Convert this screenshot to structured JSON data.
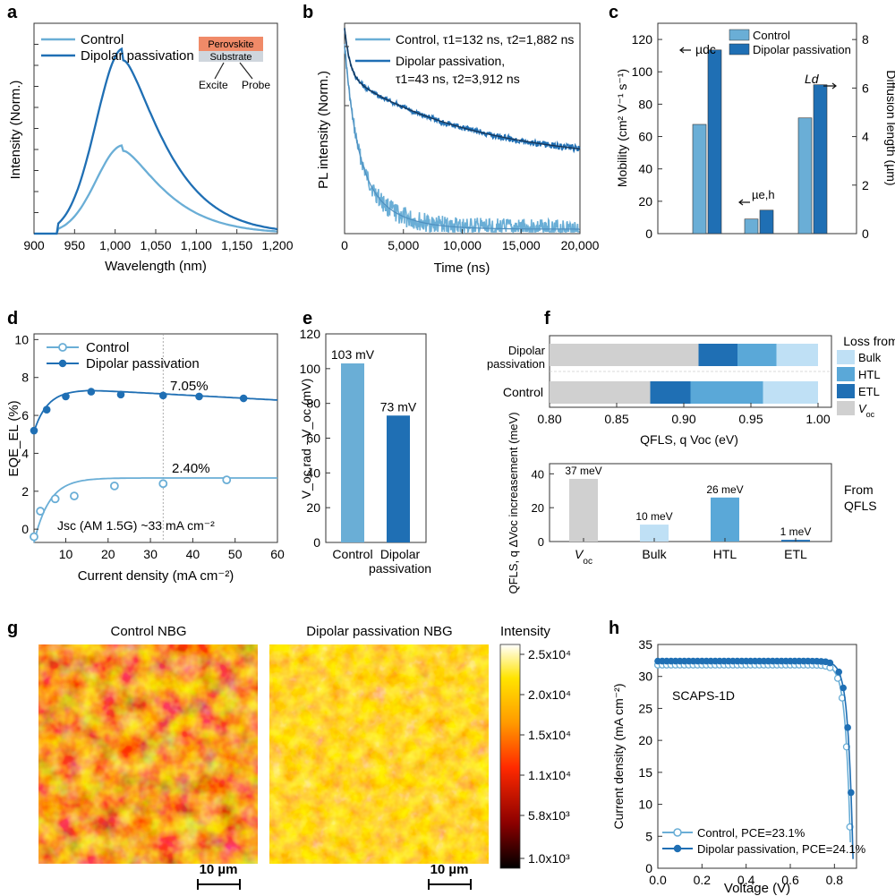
{
  "colors": {
    "control": "#6aaed6",
    "dipolar": "#1f6fb4",
    "light": "#bfe0f5",
    "mid": "#5aa8d8",
    "dark": "#1f6fb4",
    "voc": "#d0d0d0"
  },
  "panel_labels": [
    "a",
    "b",
    "c",
    "d",
    "e",
    "f",
    "g",
    "h"
  ],
  "chart_data": [
    {
      "id": "a",
      "type": "line",
      "xlabel": "Wavelength (nm)",
      "ylabel": "Intensity (Norm.)",
      "xlim": [
        900,
        1200
      ],
      "xticks": [
        900,
        950,
        1000,
        1050,
        1100,
        1150,
        1200
      ],
      "xtick_labels": [
        "900",
        "950",
        "1,000",
        "1,050",
        "1,100",
        "1,150",
        "1,200"
      ],
      "legend": [
        "Control",
        "Dipolar passivation"
      ],
      "series": [
        {
          "name": "Control",
          "peak_x": 1010,
          "peak_y": 0.42
        },
        {
          "name": "Dipolar passivation",
          "peak_x": 1010,
          "peak_y": 0.88
        }
      ],
      "inset": {
        "top_layer": "Perovskite",
        "bottom_layer": "Substrate",
        "left_label": "Excite",
        "right_label": "Probe"
      }
    },
    {
      "id": "b",
      "type": "line",
      "xlabel": "Time (ns)",
      "ylabel": "PL intensity (Norm.)",
      "xlim": [
        0,
        20000
      ],
      "xticks": [
        0,
        5000,
        10000,
        15000,
        20000
      ],
      "xtick_labels": [
        "0",
        "5,000",
        "10,000",
        "15,000",
        "20,000"
      ],
      "legend": [
        "Control, τ1=132 ns, τ2=1,882 ns",
        "Dipolar passivation,",
        "τ1=43 ns, τ2=3,912 ns"
      ],
      "series": [
        {
          "name": "Control",
          "tau1_ns": 132,
          "tau2_ns": 1882
        },
        {
          "name": "Dipolar passivation",
          "tau1_ns": 43,
          "tau2_ns": 3912
        }
      ]
    },
    {
      "id": "c",
      "type": "bar",
      "ylabel": "Mobility (cm² V⁻¹ s⁻¹)",
      "y2label": "Diffusion length (µm)",
      "ylim": [
        0,
        130
      ],
      "yticks": [
        0,
        20,
        40,
        60,
        80,
        100,
        120
      ],
      "y2lim": [
        0,
        8.67
      ],
      "y2ticks": [
        0,
        2,
        4,
        6,
        8
      ],
      "categories": [
        "µdc",
        "µe,h",
        "Ld"
      ],
      "legend": [
        "Control",
        "Dipolar passivation"
      ],
      "series": [
        {
          "name": "Control",
          "values": [
            67.5,
            9,
            71.5
          ]
        },
        {
          "name": "Dipolar passivation",
          "values": [
            113.5,
            14.5,
            92
          ]
        }
      ]
    },
    {
      "id": "d",
      "type": "line",
      "xlabel": "Current density (mA cm⁻²)",
      "ylabel": "EQE_EL (%)",
      "xlim": [
        2.5,
        60
      ],
      "ylim": [
        -0.7,
        10.3
      ],
      "xticks": [
        10,
        20,
        30,
        40,
        50,
        60
      ],
      "yticks": [
        0,
        2,
        4,
        6,
        8,
        10
      ],
      "legend": [
        "Control",
        "Dipolar passivation"
      ],
      "series": [
        {
          "name": "Control",
          "x": [
            2.5,
            4,
            7.5,
            12,
            21.5,
            33,
            48
          ],
          "y": [
            -0.4,
            0.95,
            1.6,
            1.75,
            2.28,
            2.4,
            2.6
          ]
        },
        {
          "name": "Dipolar passivation",
          "x": [
            2.5,
            5.5,
            10,
            16,
            23,
            33,
            41.5,
            52
          ],
          "y": [
            5.2,
            6.3,
            7.0,
            7.25,
            7.1,
            7.05,
            7.0,
            6.9
          ]
        }
      ],
      "annotations": [
        "7.05%",
        "2.40%",
        "Jsc (AM 1.5G) ~33 mA cm⁻²"
      ],
      "vline_x": 33
    },
    {
      "id": "e",
      "type": "bar",
      "ylabel": "V_oc,rad - V_oc (mV)",
      "ylim": [
        0,
        120
      ],
      "yticks": [
        0,
        20,
        40,
        60,
        80,
        100,
        120
      ],
      "categories": [
        "Control",
        "Dipolar passivation"
      ],
      "values": [
        103,
        73
      ],
      "data_labels": [
        "103 mV",
        "73 mV"
      ]
    },
    {
      "id": "f-top",
      "type": "bar",
      "orientation": "horizontal-stacked",
      "xlabel": "QFLS, q Voc (eV)",
      "xlim": [
        0.8,
        1.01
      ],
      "xticks": [
        0.8,
        0.85,
        0.9,
        0.95,
        1.0
      ],
      "xtick_labels": [
        "0.80",
        "0.85",
        "0.90",
        "0.95",
        "1.00"
      ],
      "categories": [
        "Dipolar passivation",
        "Control"
      ],
      "legend_title": "Loss from",
      "legend": [
        "Bulk",
        "HTL",
        "ETL",
        "Voc"
      ],
      "segments_eV": {
        "Dipolar passivation": {
          "Voc": [
            0.8,
            0.911
          ],
          "ETL": [
            0.911,
            0.94
          ],
          "HTL": [
            0.94,
            0.969
          ],
          "Bulk": [
            0.969,
            1.0
          ]
        },
        "Control": {
          "Voc": [
            0.8,
            0.875
          ],
          "ETL": [
            0.875,
            0.905
          ],
          "HTL": [
            0.905,
            0.959
          ],
          "Bulk": [
            0.959,
            1.0
          ]
        }
      }
    },
    {
      "id": "f-bottom",
      "type": "bar",
      "ylabel": "QFLS, q ΔVoc increasement (meV)",
      "ylim": [
        0,
        46
      ],
      "yticks": [
        0,
        20,
        40
      ],
      "categories": [
        "Voc",
        "Bulk",
        "HTL",
        "ETL"
      ],
      "values": [
        37,
        10,
        26,
        1
      ],
      "data_labels": [
        "37 meV",
        "10 meV",
        "26 meV",
        "1 meV"
      ],
      "side_label": [
        "From",
        "QFLS"
      ]
    },
    {
      "id": "g",
      "type": "heatmap",
      "titles": [
        "Control NBG",
        "Dipolar passivation NBG"
      ],
      "colorbar_title": "Intensity",
      "colorbar_ticks": [
        "2.5x10⁴",
        "2.0x10⁴",
        "1.5x10⁴",
        "1.1x10⁴",
        "5.8x10³",
        "1.0x10³"
      ],
      "scale_bar": "10 µm"
    },
    {
      "id": "h",
      "type": "line",
      "xlabel": "Voltage (V)",
      "ylabel": "Current density (mA cm⁻²)",
      "xlim": [
        0,
        0.9
      ],
      "ylim": [
        0,
        35
      ],
      "xticks": [
        0.0,
        0.2,
        0.4,
        0.6,
        0.8
      ],
      "xtick_labels": [
        "0.0",
        "0.2",
        "0.4",
        "0.6",
        "0.8"
      ],
      "yticks": [
        0,
        5,
        10,
        15,
        20,
        25,
        30,
        35
      ],
      "annotation": "SCAPS-1D",
      "legend": [
        "Control, PCE=23.1%",
        "Dipolar passivation, PCE=24.1%"
      ],
      "series": [
        {
          "name": "Control",
          "jsc": 31.8,
          "voc": 0.875,
          "pce": 23.1
        },
        {
          "name": "Dipolar passivation",
          "jsc": 32.4,
          "voc": 0.885,
          "pce": 24.1
        }
      ]
    }
  ]
}
